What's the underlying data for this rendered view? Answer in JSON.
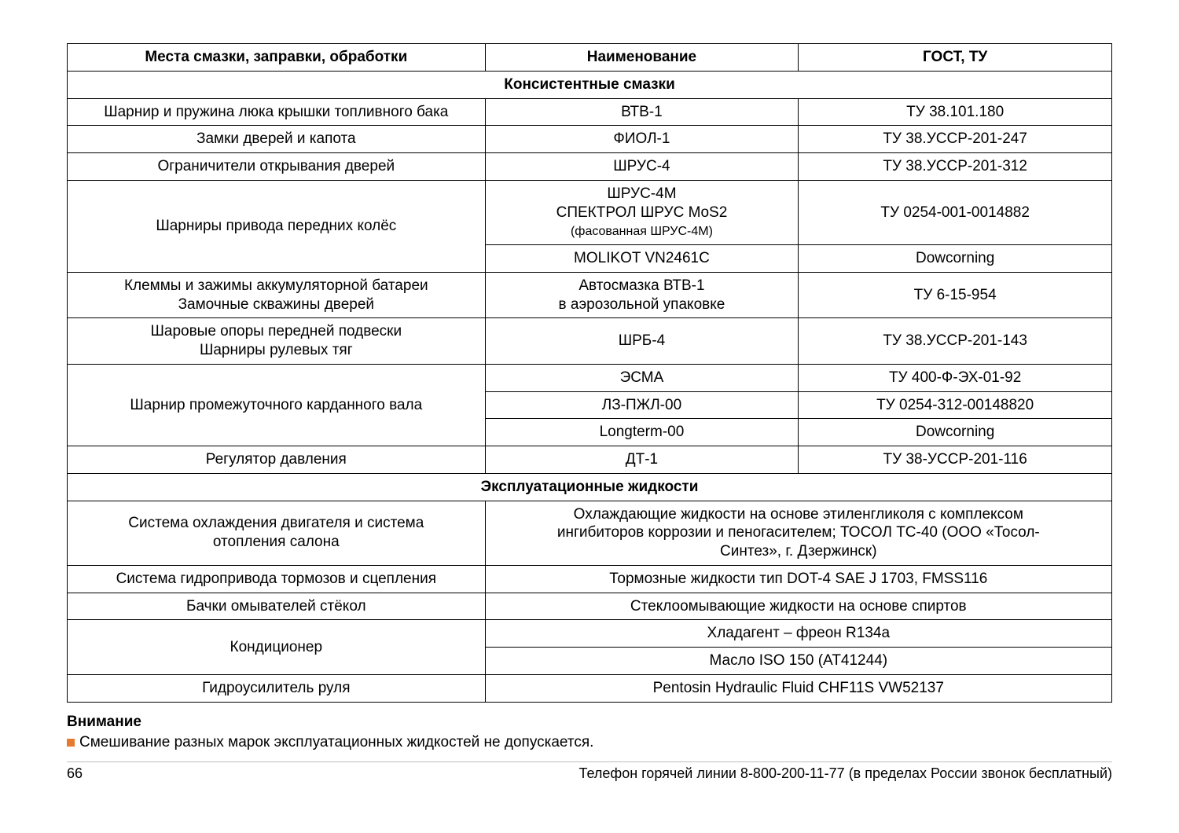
{
  "table": {
    "headers": {
      "col1": "Места смазки, заправки, обработки",
      "col2": "Наименование",
      "col3": "ГОСТ, ТУ"
    },
    "section1_title": "Консистентные смазки",
    "rows": [
      {
        "c1": "Шарнир и пружина люка крышки топливного бака",
        "c2": "ВТВ-1",
        "c3": "ТУ 38.101.180"
      },
      {
        "c1": "Замки дверей и капота",
        "c2": "ФИОЛ-1",
        "c3": "ТУ 38.УССР-201-247"
      },
      {
        "c1": "Ограничители открывания дверей",
        "c2": "ШРУС-4",
        "c3": "ТУ 38.УССР-201-312"
      }
    ],
    "row_front_joints": {
      "c1": "Шарниры привода передних колёс",
      "r1c2": "ШРУС-4М\nСПЕКТРОЛ ШРУС MoS2",
      "r1c2_note": "(фасованная ШРУС-4М)",
      "r1c3": "ТУ 0254-001-0014882",
      "r2c2": "MOLIKOT VN2461C",
      "r2c3": "Dowcorning"
    },
    "row_clamps": {
      "c1": "Клеммы и зажимы аккумуляторной батареи\nЗамочные скважины дверей",
      "c2": "Автосмазка ВТВ-1\nв аэрозольной упаковке",
      "c3": "ТУ 6-15-954"
    },
    "row_ball": {
      "c1": "Шаровые опоры передней подвески\nШарниры рулевых тяг",
      "c2": "ШРБ-4",
      "c3": "ТУ 38.УССР-201-143"
    },
    "row_cardan": {
      "c1": "Шарнир промежуточного карданного вала",
      "r1c2": "ЭСМА",
      "r1c3": "ТУ 400-Ф-ЭХ-01-92",
      "r2c2": "ЛЗ-ПЖЛ-00",
      "r2c3": "ТУ 0254-312-00148820",
      "r3c2": "Longterm-00",
      "r3c3": "Dowcorning"
    },
    "row_regulator": {
      "c1": "Регулятор давления",
      "c2": "ДТ-1",
      "c3": "ТУ 38-УССР-201-116"
    },
    "section2_title": "Эксплуатационные жидкости",
    "row_cooling": {
      "c1": "Система охлаждения двигателя и система\nотопления салона",
      "c2span": "Охлаждающие жидкости на основе этиленгликоля с комплексом\nингибиторов коррозии и пеногасителем; ТОСОЛ ТС-40 (ООО «Тосол-\nСинтез», г. Дзержинск)"
    },
    "row_brake": {
      "c1": "Система гидропривода тормозов и сцепления",
      "c2span": "Тормозные жидкости тип DOT-4 SAE J 1703, FMSS116"
    },
    "row_washer": {
      "c1": "Бачки омывателей стёкол",
      "c2span": "Стеклоомывающие жидкости на основе спиртов"
    },
    "row_ac": {
      "c1": "Кондиционер",
      "r1": "Хладагент – фреон R134a",
      "r2": "Масло ISO 150 (AT41244)"
    },
    "row_power_steering": {
      "c1": "Гидроусилитель руля",
      "c2span": "Pentosin Hydraulic Fluid CHF11S VW52137"
    }
  },
  "footer": {
    "warning_title": "Внимание",
    "warning_text": "Смешивание разных марок эксплуатационных жидкостей не допускается.",
    "page_number": "66",
    "hotline": "Телефон горячей линии 8-800-200-11-77 (в пределах России звонок бесплатный)"
  },
  "colors": {
    "bullet": "#e67a2e",
    "border": "#000000",
    "text": "#000000",
    "footer_rule": "#bdbdbd"
  }
}
